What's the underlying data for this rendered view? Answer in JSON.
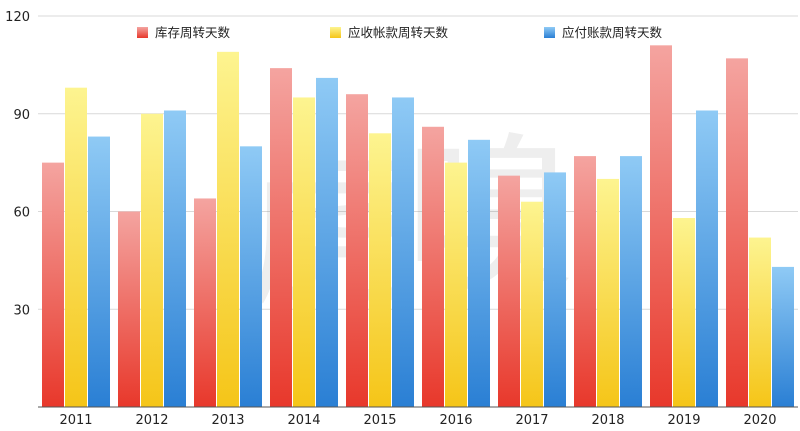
{
  "chart_data": {
    "type": "bar",
    "categories": [
      "2011",
      "2012",
      "2013",
      "2014",
      "2015",
      "2016",
      "2017",
      "2018",
      "2019",
      "2020"
    ],
    "series": [
      {
        "name": "库存周转天数",
        "color_top": "#f4a4a0",
        "color_bottom": "#e8382b",
        "values": [
          75,
          60,
          64,
          104,
          96,
          86,
          71,
          77,
          111,
          107
        ]
      },
      {
        "name": "应收帐款周转天数",
        "color_top": "#fdf490",
        "color_bottom": "#f5c518",
        "values": [
          98,
          90,
          109,
          95,
          84,
          75,
          63,
          70,
          58,
          52
        ]
      },
      {
        "name": "应付账款周转天数",
        "color_top": "#8fcaf5",
        "color_bottom": "#2a7fd4",
        "values": [
          83,
          91,
          80,
          101,
          95,
          82,
          72,
          77,
          91,
          43
        ]
      }
    ],
    "yticks": [
      30,
      60,
      90,
      120
    ],
    "ylim": [
      0,
      120
    ],
    "grid": true,
    "legend_position": "top",
    "watermark": "虎嗅"
  }
}
